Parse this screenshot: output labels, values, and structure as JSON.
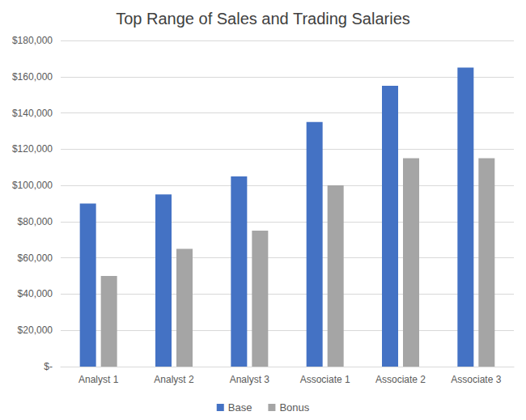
{
  "chart_data": {
    "type": "bar",
    "title": "Top Range of Sales and Trading Salaries",
    "categories": [
      "Analyst 1",
      "Analyst 2",
      "Analyst 3",
      "Associate 1",
      "Associate 2",
      "Associate 3"
    ],
    "series": [
      {
        "name": "Base",
        "color": "#4472c4",
        "values": [
          90000,
          95000,
          105000,
          135000,
          155000,
          165000
        ]
      },
      {
        "name": "Bonus",
        "color": "#a5a5a5",
        "values": [
          50000,
          65000,
          75000,
          100000,
          115000,
          115000
        ]
      }
    ],
    "ylim": [
      0,
      180000
    ],
    "yticks": [
      {
        "value": 0,
        "label": "$-"
      },
      {
        "value": 20000,
        "label": "$20,000"
      },
      {
        "value": 40000,
        "label": "$40,000"
      },
      {
        "value": 60000,
        "label": "$60,000"
      },
      {
        "value": 80000,
        "label": "$80,000"
      },
      {
        "value": 100000,
        "label": "$100,000"
      },
      {
        "value": 120000,
        "label": "$120,000"
      },
      {
        "value": 140000,
        "label": "$140,000"
      },
      {
        "value": 160000,
        "label": "$160,000"
      },
      {
        "value": 180000,
        "label": "$180,000"
      }
    ],
    "grid": true,
    "legend": "bottom"
  }
}
